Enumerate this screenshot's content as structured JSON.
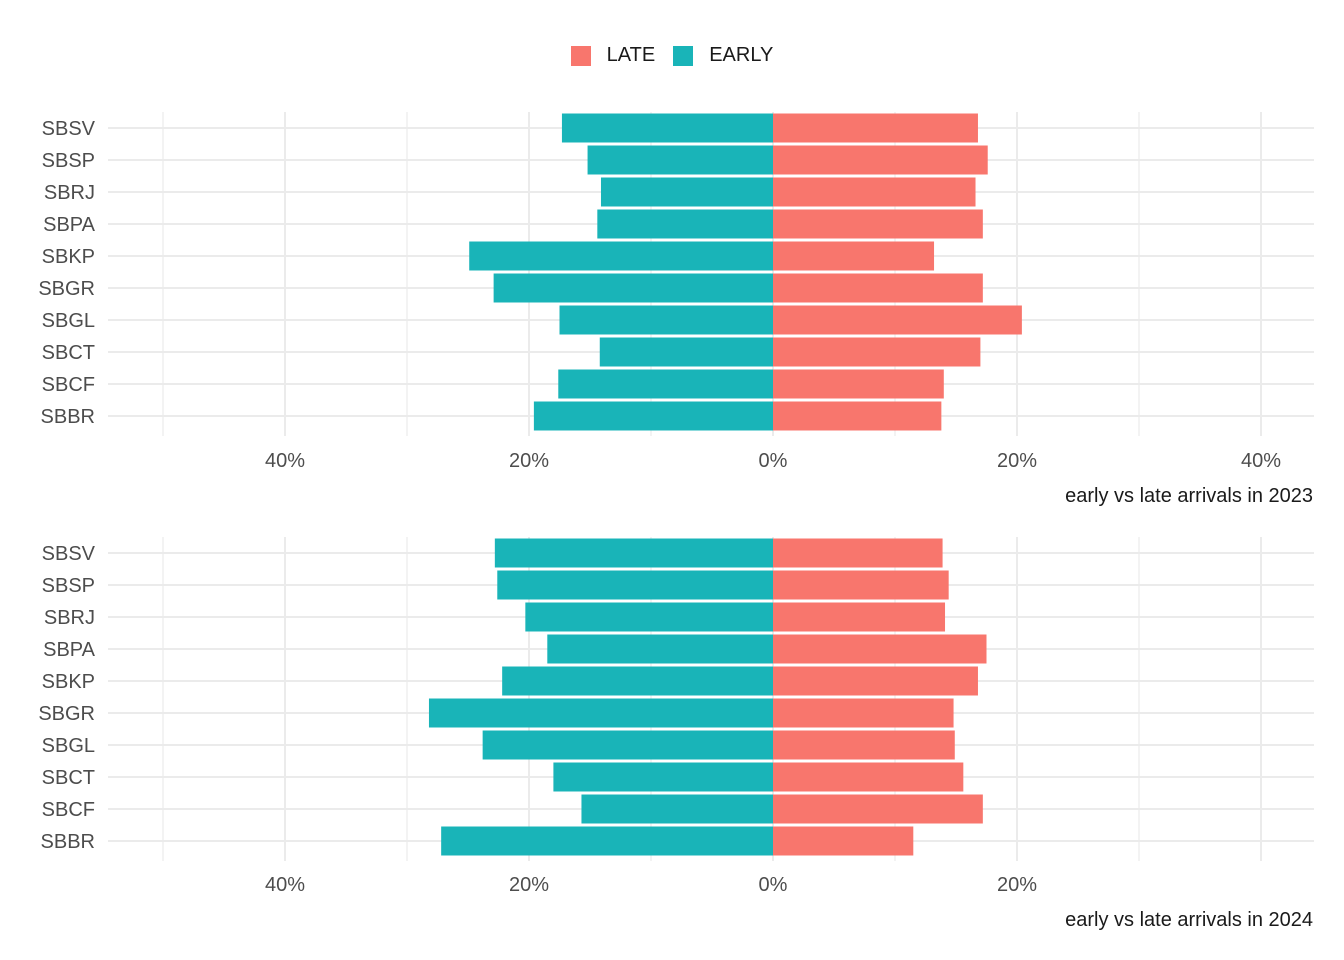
{
  "legend": {
    "items": [
      {
        "label": "LATE",
        "color": "#F8766D"
      },
      {
        "label": "EARLY",
        "color": "#19B4B8"
      }
    ]
  },
  "colors": {
    "late": "#F8766D",
    "early": "#19B4B8",
    "grid": "#EBEBEB",
    "tick_text": "#4D4D4D"
  },
  "chart_data": [
    {
      "type": "bar",
      "orientation": "horizontal-diverging",
      "caption": "early vs late arrivals in  2023",
      "categories": [
        "SBSV",
        "SBSP",
        "SBRJ",
        "SBPA",
        "SBKP",
        "SBGR",
        "SBGL",
        "SBCT",
        "SBCF",
        "SBBR"
      ],
      "series": [
        {
          "name": "LATE",
          "values": [
            16.8,
            17.6,
            16.6,
            17.2,
            13.2,
            17.2,
            20.4,
            17.0,
            14.0,
            13.8
          ]
        },
        {
          "name": "EARLY",
          "values": [
            17.3,
            15.2,
            14.1,
            14.4,
            24.9,
            22.9,
            17.5,
            14.2,
            17.6,
            19.6
          ]
        }
      ],
      "xlim": [
        -55,
        45
      ],
      "xticks": [
        {
          "value": -40,
          "label": "40%"
        },
        {
          "value": -20,
          "label": "20%"
        },
        {
          "value": 0,
          "label": "0%"
        },
        {
          "value": 20,
          "label": "20%"
        },
        {
          "value": 40,
          "label": "40%"
        }
      ]
    },
    {
      "type": "bar",
      "orientation": "horizontal-diverging",
      "caption": "early vs late arrivals in  2024",
      "categories": [
        "SBSV",
        "SBSP",
        "SBRJ",
        "SBPA",
        "SBKP",
        "SBGR",
        "SBGL",
        "SBCT",
        "SBCF",
        "SBBR"
      ],
      "series": [
        {
          "name": "LATE",
          "values": [
            13.9,
            14.4,
            14.1,
            17.5,
            16.8,
            14.8,
            14.9,
            15.6,
            17.2,
            11.5
          ]
        },
        {
          "name": "EARLY",
          "values": [
            22.8,
            22.6,
            20.3,
            18.5,
            22.2,
            28.2,
            23.8,
            18.0,
            15.7,
            27.2
          ]
        }
      ],
      "xlim": [
        -55,
        45
      ],
      "xticks": [
        {
          "value": -40,
          "label": "40%"
        },
        {
          "value": -20,
          "label": "20%"
        },
        {
          "value": 0,
          "label": "0%"
        },
        {
          "value": 20,
          "label": "20%"
        }
      ]
    }
  ]
}
